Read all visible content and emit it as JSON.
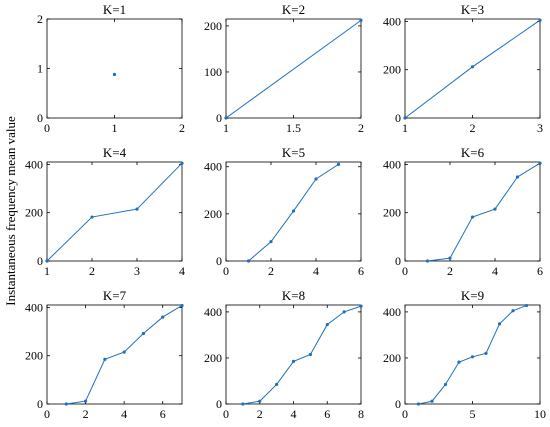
{
  "figure": {
    "ylabel": "Instantaneous frequency mean value",
    "line_color": "#1f6fbf",
    "axis_color": "#000000"
  },
  "chart_data": [
    {
      "type": "line",
      "title": "K=1",
      "xlim": [
        0,
        2
      ],
      "ylim": [
        0,
        2
      ],
      "xticks": [
        0,
        1,
        2
      ],
      "yticks": [
        0,
        1,
        2
      ],
      "x": [
        1
      ],
      "y": [
        0.88
      ]
    },
    {
      "type": "line",
      "title": "K=2",
      "xlim": [
        1,
        2
      ],
      "ylim": [
        0,
        215
      ],
      "xticks": [
        1,
        1.5,
        2
      ],
      "yticks": [
        0,
        100,
        200
      ],
      "x": [
        1,
        2
      ],
      "y": [
        0,
        212
      ]
    },
    {
      "type": "line",
      "title": "K=3",
      "xlim": [
        1,
        3
      ],
      "ylim": [
        0,
        410
      ],
      "xticks": [
        1,
        2,
        3
      ],
      "yticks": [
        0,
        200,
        400
      ],
      "x": [
        1,
        2,
        3
      ],
      "y": [
        0,
        212,
        405
      ]
    },
    {
      "type": "line",
      "title": "K=4",
      "xlim": [
        1,
        4
      ],
      "ylim": [
        0,
        410
      ],
      "xticks": [
        1,
        2,
        3,
        4
      ],
      "yticks": [
        0,
        200,
        400
      ],
      "x": [
        1,
        2,
        3,
        4
      ],
      "y": [
        0,
        182,
        215,
        405
      ]
    },
    {
      "type": "line",
      "title": "K=5",
      "xlim": [
        0,
        6
      ],
      "ylim": [
        0,
        420
      ],
      "xticks": [
        0,
        2,
        4,
        6
      ],
      "yticks": [
        0,
        200,
        400
      ],
      "x": [
        1,
        2,
        3,
        4,
        5
      ],
      "y": [
        0,
        82,
        212,
        348,
        410
      ]
    },
    {
      "type": "line",
      "title": "K=6",
      "xlim": [
        0,
        6
      ],
      "ylim": [
        0,
        410
      ],
      "xticks": [
        0,
        2,
        4,
        6
      ],
      "yticks": [
        0,
        200,
        400
      ],
      "x": [
        1,
        2,
        3,
        4,
        5,
        6
      ],
      "y": [
        0,
        12,
        182,
        215,
        348,
        405
      ]
    },
    {
      "type": "line",
      "title": "K=7",
      "xlim": [
        0,
        7
      ],
      "ylim": [
        0,
        410
      ],
      "xticks": [
        0,
        2,
        4,
        6
      ],
      "yticks": [
        0,
        200,
        400
      ],
      "x": [
        1,
        2,
        3,
        4,
        5,
        6,
        7
      ],
      "y": [
        0,
        12,
        185,
        215,
        292,
        360,
        408
      ]
    },
    {
      "type": "line",
      "title": "K=8",
      "xlim": [
        0,
        8
      ],
      "ylim": [
        0,
        430
      ],
      "xticks": [
        0,
        2,
        4,
        6,
        8
      ],
      "yticks": [
        0,
        200,
        400
      ],
      "x": [
        1,
        2,
        3,
        4,
        5,
        6,
        7,
        8
      ],
      "y": [
        0,
        12,
        85,
        185,
        215,
        345,
        400,
        425
      ]
    },
    {
      "type": "line",
      "title": "K=9",
      "xlim": [
        0,
        10
      ],
      "ylim": [
        0,
        430
      ],
      "xticks": [
        0,
        5,
        10
      ],
      "yticks": [
        0,
        200,
        400
      ],
      "x": [
        1,
        2,
        3,
        4,
        5,
        6,
        7,
        8,
        9
      ],
      "y": [
        0,
        12,
        85,
        182,
        205,
        220,
        348,
        405,
        428
      ]
    }
  ]
}
